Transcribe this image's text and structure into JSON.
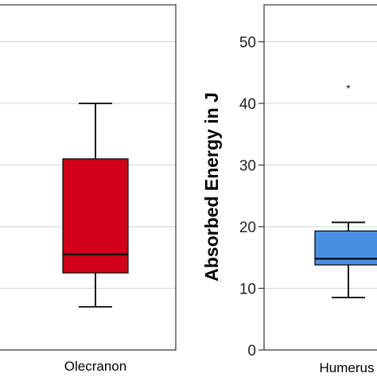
{
  "chart_data": [
    {
      "type": "box",
      "categories": [
        "Olecranon"
      ],
      "ylim": [
        0,
        56
      ],
      "grid": true,
      "boxes": [
        {
          "category": "Olecranon",
          "color": "#d0021b",
          "whisker_low": 7,
          "q1": 12.5,
          "median": 15.5,
          "q3": 31,
          "whisker_high": 40,
          "outliers": []
        }
      ]
    },
    {
      "type": "box",
      "categories": [
        "Humerus"
      ],
      "category_labels": [
        "Humerus"
      ],
      "ylabel": "Absorbed Energy in J",
      "ylim": [
        0,
        56
      ],
      "yticks": [
        0,
        10,
        20,
        30,
        40,
        50
      ],
      "grid": true,
      "boxes": [
        {
          "category": "Humerus",
          "color": "#4a90e2",
          "whisker_low": 8.5,
          "q1": 13.8,
          "median": 14.8,
          "q3": 19.3,
          "whisker_high": 20.7,
          "outliers": [
            42.7
          ]
        }
      ]
    }
  ]
}
